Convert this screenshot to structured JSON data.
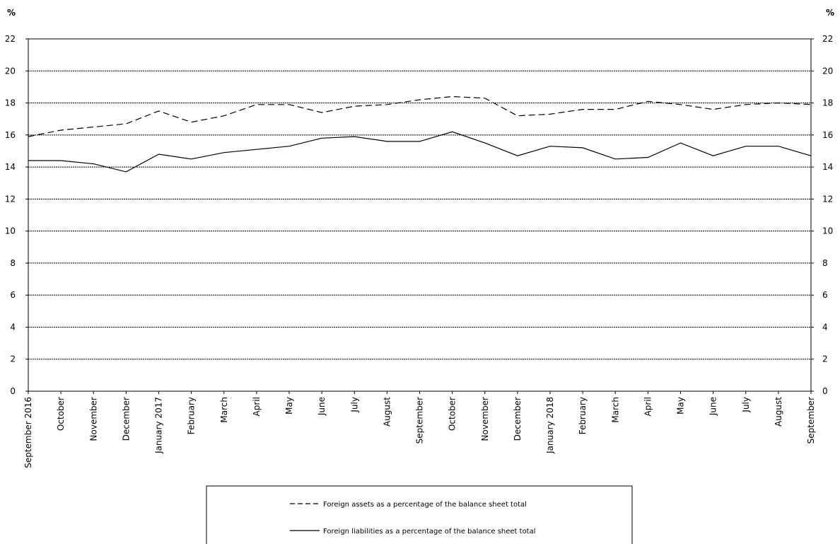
{
  "chart_data": {
    "type": "line",
    "y_unit_left": "%",
    "y_unit_right": "%",
    "ylim": [
      0,
      22
    ],
    "yticks": [
      0,
      2,
      4,
      6,
      8,
      10,
      12,
      14,
      16,
      18,
      20,
      22
    ],
    "grid": "horizontal dashed",
    "legend_position": "bottom-center",
    "categories": [
      "September 2016",
      "October",
      "November",
      "December",
      "January 2017",
      "February",
      "March",
      "April",
      "May",
      "June",
      "July",
      "August",
      "September",
      "October",
      "November",
      "December",
      "January 2018",
      "February",
      "March",
      "April",
      "May",
      "June",
      "July",
      "August",
      "September"
    ],
    "series": [
      {
        "name": "Foreign assets as a percentage of the balance sheet total",
        "style": "dashed",
        "values": [
          15.9,
          16.3,
          16.5,
          16.7,
          17.5,
          16.8,
          17.2,
          17.9,
          17.9,
          17.4,
          17.8,
          17.9,
          18.2,
          18.4,
          18.3,
          17.2,
          17.3,
          17.6,
          17.6,
          18.1,
          17.9,
          17.6,
          17.9,
          18.0,
          17.9
        ]
      },
      {
        "name": "Foreign liabilities as a percentage of the balance sheet total",
        "style": "solid",
        "values": [
          14.4,
          14.4,
          14.2,
          13.7,
          14.8,
          14.5,
          14.9,
          15.1,
          15.3,
          15.8,
          15.9,
          15.6,
          15.6,
          16.2,
          15.5,
          14.7,
          15.3,
          15.2,
          14.5,
          14.6,
          15.5,
          14.7,
          15.3,
          15.3,
          14.7
        ]
      }
    ]
  }
}
